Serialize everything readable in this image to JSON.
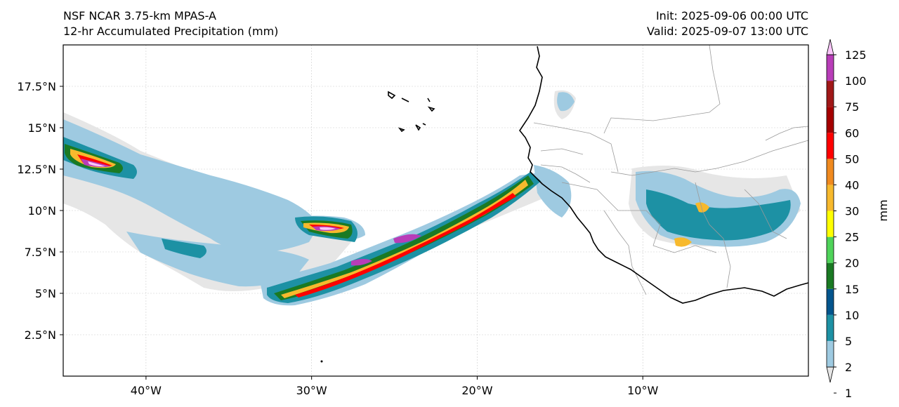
{
  "header": {
    "model": "NSF NCAR 3.75-km MPAS-A",
    "field": "12-hr Accumulated Precipitation (mm)",
    "init": "Init: 2025-09-06 00:00 UTC",
    "valid": "Valid: 2025-09-07 13:00 UTC"
  },
  "axes": {
    "lon_labels": [
      {
        "text": "40°W",
        "lon": -40
      },
      {
        "text": "30°W",
        "lon": -30
      },
      {
        "text": "20°W",
        "lon": -20
      },
      {
        "text": "10°W",
        "lon": -10
      }
    ],
    "lat_labels": [
      {
        "text": "17.5°N",
        "lat": 17.5
      },
      {
        "text": "15°N",
        "lat": 15
      },
      {
        "text": "12.5°N",
        "lat": 12.5
      },
      {
        "text": "10°N",
        "lat": 10
      },
      {
        "text": "7.5°N",
        "lat": 7.5
      },
      {
        "text": "5°N",
        "lat": 5
      },
      {
        "text": "2.5°N",
        "lat": 2.5
      }
    ],
    "lon_range": [
      -45,
      0
    ],
    "lat_range": [
      0,
      20
    ],
    "grid": true
  },
  "colorbar": {
    "label": "mm",
    "bins": [
      {
        "value": "1",
        "color": "#e6e6e6"
      },
      {
        "value": "2",
        "color": "#9ecae1"
      },
      {
        "value": "5",
        "color": "#1d91a4"
      },
      {
        "value": "10",
        "color": "#03558d"
      },
      {
        "value": "15",
        "color": "#1a7a23"
      },
      {
        "value": "20",
        "color": "#4fd35a"
      },
      {
        "value": "25",
        "color": "#ffff00"
      },
      {
        "value": "30",
        "color": "#f7b92d"
      },
      {
        "value": "40",
        "color": "#f08a1f"
      },
      {
        "value": "50",
        "color": "#ff0000"
      },
      {
        "value": "60",
        "color": "#a50000"
      },
      {
        "value": "75",
        "color": "#a01818"
      },
      {
        "value": "100",
        "color": "#b83db8"
      },
      {
        "value": "125",
        "color": "#f9c6f9"
      }
    ],
    "extend": "both"
  }
}
